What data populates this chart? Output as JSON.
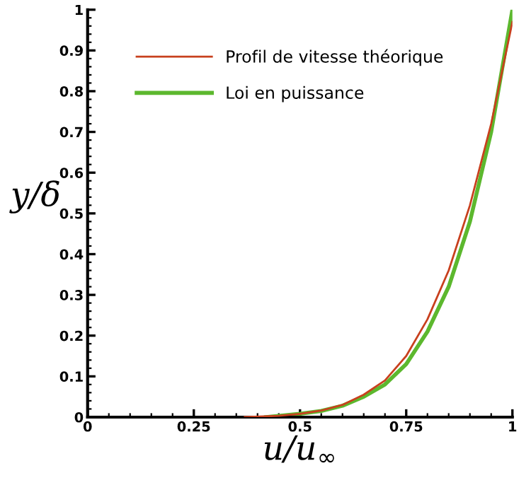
{
  "chart_data": {
    "type": "line",
    "xlabel": "u/u$_{∞}$",
    "ylabel": "y/δ",
    "xlim": [
      0,
      1
    ],
    "ylim": [
      0,
      1
    ],
    "xticks": [
      0,
      0.25,
      0.5,
      0.75,
      1
    ],
    "yticks": [
      0,
      0.1,
      0.2,
      0.3,
      0.4,
      0.5,
      0.6,
      0.7,
      0.8,
      0.9,
      1
    ],
    "grid": false,
    "legend": "top left",
    "marker": "none",
    "line_style": "solid",
    "series": [
      {
        "name": "Profil de vitesse théorique",
        "color": "#c8401e",
        "x": [
          0.37,
          0.45,
          0.5,
          0.55,
          0.6,
          0.65,
          0.7,
          0.75,
          0.8,
          0.85,
          0.9,
          0.95,
          1
        ],
        "values": [
          0,
          0.003,
          0.008,
          0.016,
          0.03,
          0.055,
          0.09,
          0.15,
          0.24,
          0.36,
          0.52,
          0.72,
          0.97
        ]
      },
      {
        "name": "Loi en puissance",
        "color": "#5cb82e",
        "x": [
          0.42,
          0.5,
          0.55,
          0.6,
          0.65,
          0.7,
          0.75,
          0.8,
          0.85,
          0.9,
          0.95,
          1
        ],
        "values": [
          0,
          0.008,
          0.015,
          0.028,
          0.05,
          0.08,
          0.13,
          0.21,
          0.32,
          0.48,
          0.7,
          1
        ]
      }
    ]
  }
}
